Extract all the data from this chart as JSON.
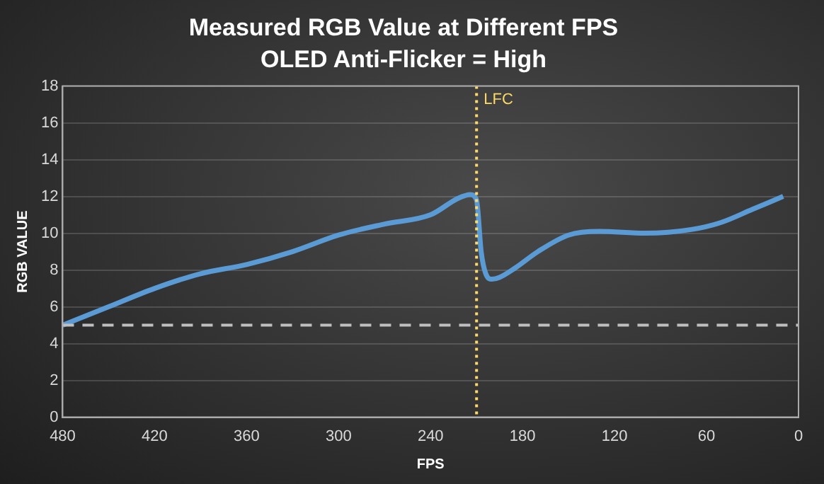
{
  "chart_data": {
    "type": "line",
    "title": "Measured RGB Value at Different FPS",
    "subtitle": "OLED Anti-Flicker = High",
    "xlabel": "FPS",
    "ylabel": "RGB VALUE",
    "series": [
      {
        "color": "#5b9bd5",
        "x": [
          480,
          450,
          420,
          390,
          360,
          330,
          300,
          270,
          240,
          222,
          214,
          210,
          207,
          204,
          200,
          195,
          185,
          170,
          150,
          130,
          100,
          70,
          50,
          30,
          10
        ],
        "values": [
          5,
          6,
          7,
          7.8,
          8.3,
          9,
          9.9,
          10.5,
          11,
          11.9,
          12.1,
          11.8,
          9,
          7.8,
          7.5,
          7.6,
          8.1,
          9,
          9.9,
          10.1,
          10,
          10.2,
          10.6,
          11.3,
          12
        ]
      }
    ],
    "xlim": [
      480,
      0
    ],
    "xticks": [
      480,
      420,
      360,
      300,
      240,
      180,
      120,
      60,
      0
    ],
    "ylim": [
      0,
      18
    ],
    "yticks": [
      0,
      2,
      4,
      6,
      8,
      10,
      12,
      14,
      16,
      18
    ],
    "grid": "y",
    "legend": false,
    "marker": "none",
    "line_style": "solid",
    "ref_lines": [
      {
        "axis": "y",
        "value": 5,
        "color": "#bfbfbf",
        "line_style": "dashed"
      },
      {
        "axis": "x",
        "value": 210,
        "label": "LFC",
        "color": "#ffd966",
        "line_style": "dotted"
      }
    ]
  }
}
